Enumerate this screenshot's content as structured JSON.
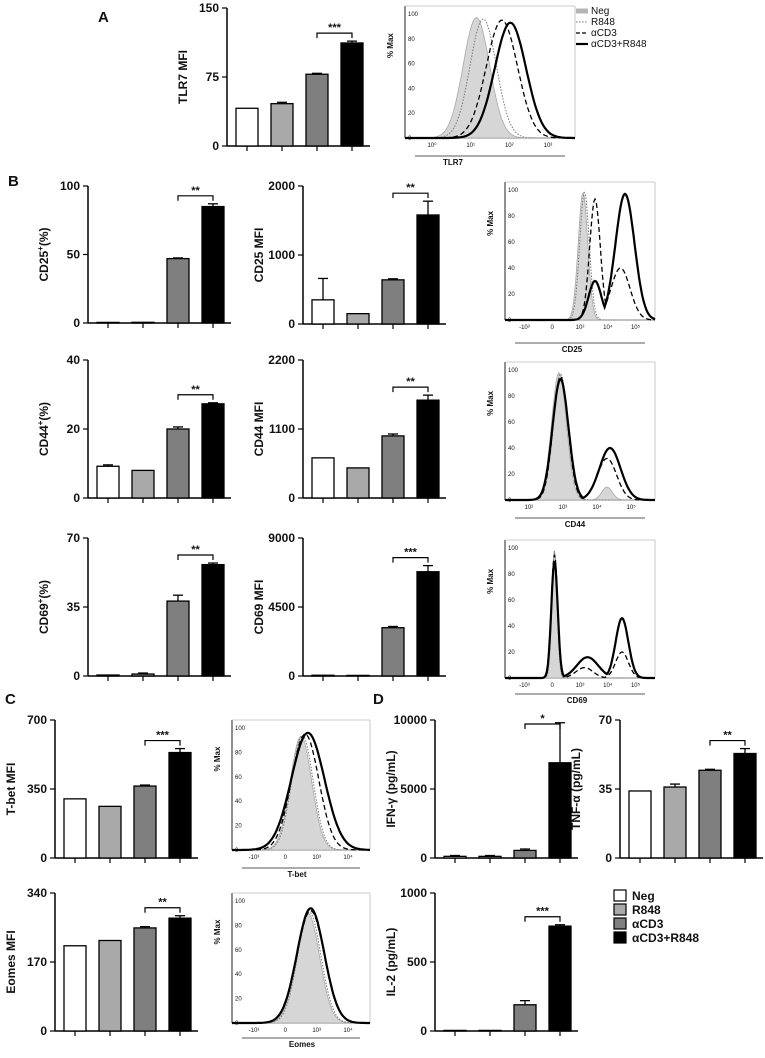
{
  "panel_labels": [
    "A",
    "B",
    "C",
    "D"
  ],
  "groups": [
    "Neg",
    "R848",
    "αCD3",
    "αCD3+R848"
  ],
  "group_fills": [
    "#ffffff",
    "#a9a9a9",
    "#7f7f7f",
    "#000000"
  ],
  "chart_data": [
    {
      "type": "bar",
      "id": "tlr7",
      "ylabel": "TLR7 MFI",
      "ylabel_sup": "",
      "ylabel_tail": "",
      "ylim": [
        0,
        150
      ],
      "yticks": [
        0,
        75,
        150
      ],
      "yticklabels": [
        "0",
        "75",
        "150"
      ],
      "categories": [
        "Neg",
        "R848",
        "αCD3",
        "αCD3+R848"
      ],
      "values": [
        41,
        46,
        78,
        112
      ],
      "errors": [
        0,
        1.5,
        1,
        2
      ],
      "sig": {
        "from": 2,
        "to": 3,
        "label": "***"
      }
    },
    {
      "type": "bar",
      "id": "cd25pct",
      "ylabel": "CD25",
      "ylabel_sup": "+",
      "ylabel_tail": "(%)",
      "ylim": [
        0,
        100
      ],
      "yticks": [
        0,
        50,
        100
      ],
      "yticklabels": [
        "0",
        "50",
        "100"
      ],
      "categories": [
        "Neg",
        "R848",
        "αCD3",
        "αCD3+R848"
      ],
      "values": [
        0.3,
        0.5,
        47,
        85
      ],
      "errors": [
        0,
        0,
        0.5,
        2
      ],
      "sig": {
        "from": 2,
        "to": 3,
        "label": "**"
      }
    },
    {
      "type": "bar",
      "id": "cd25mfi",
      "ylabel": "CD25 MFI",
      "ylabel_sup": "",
      "ylabel_tail": "",
      "ylim": [
        0,
        2000
      ],
      "yticks": [
        0,
        1000,
        2000
      ],
      "yticklabels": [
        "0",
        "1000",
        "2000"
      ],
      "categories": [
        "Neg",
        "R848",
        "αCD3",
        "αCD3+R848"
      ],
      "values": [
        350,
        150,
        640,
        1580
      ],
      "errors": [
        310,
        0,
        15,
        200
      ],
      "sig": {
        "from": 2,
        "to": 3,
        "label": "**"
      }
    },
    {
      "type": "bar",
      "id": "cd44pct",
      "ylabel": "CD44",
      "ylabel_sup": "+",
      "ylabel_tail": "(%)",
      "ylim": [
        0,
        40
      ],
      "yticks": [
        0,
        20,
        40
      ],
      "yticklabels": [
        "0",
        "20",
        "40"
      ],
      "categories": [
        "Neg",
        "R848",
        "αCD3",
        "αCD3+R848"
      ],
      "values": [
        9.2,
        8,
        20,
        27.3
      ],
      "errors": [
        0.4,
        0,
        0.6,
        0.3
      ],
      "sig": {
        "from": 2,
        "to": 3,
        "label": "**"
      }
    },
    {
      "type": "bar",
      "id": "cd44mfi",
      "ylabel": "CD44 MFI",
      "ylabel_sup": "",
      "ylabel_tail": "",
      "ylim": [
        0,
        2200
      ],
      "yticks": [
        0,
        1100,
        2200
      ],
      "yticklabels": [
        "0",
        "1100",
        "2200"
      ],
      "categories": [
        "Neg",
        "R848",
        "αCD3",
        "αCD3+R848"
      ],
      "values": [
        640,
        480,
        990,
        1560
      ],
      "errors": [
        0,
        0,
        30,
        80
      ],
      "sig": {
        "from": 2,
        "to": 3,
        "label": "**"
      }
    },
    {
      "type": "bar",
      "id": "cd69pct",
      "ylabel": "CD69",
      "ylabel_sup": "+",
      "ylabel_tail": "(%)",
      "ylim": [
        0,
        70
      ],
      "yticks": [
        0,
        35,
        70
      ],
      "yticklabels": [
        "0",
        "35",
        "70"
      ],
      "categories": [
        "Neg",
        "R848",
        "αCD3",
        "αCD3+R848"
      ],
      "values": [
        0.5,
        1,
        38,
        56.5
      ],
      "errors": [
        0,
        0.5,
        3,
        0.8
      ],
      "sig": {
        "from": 2,
        "to": 3,
        "label": "**"
      }
    },
    {
      "type": "bar",
      "id": "cd69mfi",
      "ylabel": "CD69 MFI",
      "ylabel_sup": "",
      "ylabel_tail": "",
      "ylim": [
        0,
        9000
      ],
      "yticks": [
        0,
        4500,
        9000
      ],
      "yticklabels": [
        "0",
        "4500",
        "9000"
      ],
      "categories": [
        "Neg",
        "R848",
        "αCD3",
        "αCD3+R848"
      ],
      "values": [
        50,
        20,
        3150,
        6800
      ],
      "errors": [
        0,
        0,
        80,
        400
      ],
      "sig": {
        "from": 2,
        "to": 3,
        "label": "***"
      }
    },
    {
      "type": "bar",
      "id": "tbet",
      "ylabel": "T-bet MFI",
      "ylabel_sup": "",
      "ylabel_tail": "",
      "ylim": [
        0,
        700
      ],
      "yticks": [
        0,
        350,
        700
      ],
      "yticklabels": [
        "0",
        "350",
        "700"
      ],
      "categories": [
        "Neg",
        "R848",
        "αCD3",
        "αCD3+R848"
      ],
      "values": [
        300,
        262,
        365,
        535
      ],
      "errors": [
        0,
        0,
        5,
        20
      ],
      "sig": {
        "from": 2,
        "to": 3,
        "label": "***"
      }
    },
    {
      "type": "bar",
      "id": "eomes",
      "ylabel": "Eomes MFI",
      "ylabel_sup": "",
      "ylabel_tail": "",
      "ylim": [
        0,
        340
      ],
      "yticks": [
        0,
        170,
        340
      ],
      "yticklabels": [
        "0",
        "170",
        "340"
      ],
      "categories": [
        "Neg",
        "R848",
        "αCD3",
        "αCD3+R848"
      ],
      "values": [
        210,
        223,
        254,
        278
      ],
      "errors": [
        0,
        0,
        3,
        6
      ],
      "sig": {
        "from": 2,
        "to": 3,
        "label": "**"
      }
    },
    {
      "type": "bar",
      "id": "ifng",
      "ylabel": "IFN-γ (pg/mL)",
      "ylabel_sup": "",
      "ylabel_tail": "",
      "ylim": [
        0,
        10000
      ],
      "yticks": [
        0,
        5000,
        10000
      ],
      "yticklabels": [
        "0",
        "5000",
        "10000"
      ],
      "categories": [
        "Neg",
        "R848",
        "αCD3",
        "αCD3+R848"
      ],
      "values": [
        120,
        120,
        550,
        6900
      ],
      "errors": [
        60,
        60,
        100,
        2900
      ],
      "sig": {
        "from": 2,
        "to": 3,
        "label": "*"
      }
    },
    {
      "type": "bar",
      "id": "tnfa",
      "ylabel": "TNF-α (pg/mL)",
      "ylabel_sup": "",
      "ylabel_tail": "",
      "ylim": [
        0,
        70
      ],
      "yticks": [
        0,
        35,
        70
      ],
      "yticklabels": [
        "0",
        "35",
        "70"
      ],
      "categories": [
        "Neg",
        "R848",
        "αCD3",
        "αCD3+R848"
      ],
      "values": [
        34,
        36,
        44.5,
        53
      ],
      "errors": [
        0,
        1.5,
        0.5,
        2.5
      ],
      "sig": {
        "from": 2,
        "to": 3,
        "label": "**"
      }
    },
    {
      "type": "bar",
      "id": "il2",
      "ylabel": "IL-2 (pg/mL)",
      "ylabel_sup": "",
      "ylabel_tail": "",
      "ylim": [
        0,
        1000
      ],
      "yticks": [
        0,
        500,
        1000
      ],
      "yticklabels": [
        "0",
        "500",
        "1000"
      ],
      "categories": [
        "Neg",
        "R848",
        "αCD3",
        "αCD3+R848"
      ],
      "values": [
        3,
        3,
        190,
        760
      ],
      "errors": [
        0,
        0,
        30,
        10
      ],
      "sig": {
        "from": 2,
        "to": 3,
        "label": "***"
      }
    }
  ],
  "histograms": [
    {
      "id": "h-tlr7",
      "xlabel": "TLR7",
      "ylabel": "% Max",
      "yticks": [
        "0",
        "20",
        "40",
        "60",
        "80",
        "100"
      ],
      "xticks": [
        "10⁰",
        "10¹",
        "10²",
        "10³"
      ],
      "neg": [
        {
          "c": 0.42,
          "w": 0.11,
          "h": 0.97
        }
      ],
      "r848": [
        {
          "c": 0.46,
          "w": 0.11,
          "h": 0.96
        }
      ],
      "acd3": [
        {
          "c": 0.57,
          "w": 0.13,
          "h": 0.95
        }
      ],
      "combo": [
        {
          "c": 0.62,
          "w": 0.13,
          "h": 0.93
        }
      ],
      "show_legend": true,
      "legend": [
        "Neg",
        "R848",
        "αCD3",
        "αCD3+R848"
      ]
    },
    {
      "id": "h-cd25",
      "xlabel": "CD25",
      "ylabel": "% Max",
      "yticks": [
        "0",
        "20",
        "40",
        "60",
        "80",
        "100"
      ],
      "xticks": [
        "-10³",
        "0",
        "10³",
        "10⁴",
        "10⁵"
      ],
      "neg": [
        {
          "c": 0.52,
          "w": 0.045,
          "h": 0.98
        }
      ],
      "r848": [
        {
          "c": 0.53,
          "w": 0.045,
          "h": 0.98
        }
      ],
      "acd3": [
        {
          "c": 0.6,
          "w": 0.05,
          "h": 0.93
        },
        {
          "c": 0.77,
          "w": 0.09,
          "h": 0.4
        }
      ],
      "combo": [
        {
          "c": 0.6,
          "w": 0.06,
          "h": 0.3
        },
        {
          "c": 0.8,
          "w": 0.09,
          "h": 0.97
        }
      ],
      "show_legend": false,
      "legend": []
    },
    {
      "id": "h-cd44",
      "xlabel": "CD44",
      "ylabel": "% Max",
      "yticks": [
        "0",
        "20",
        "40",
        "60",
        "80",
        "100"
      ],
      "xticks": [
        "10²",
        "10³",
        "10⁴",
        "10⁵"
      ],
      "neg": [
        {
          "c": 0.36,
          "w": 0.07,
          "h": 0.98
        },
        {
          "c": 0.68,
          "w": 0.05,
          "h": 0.1
        }
      ],
      "r848": [
        {
          "c": 0.37,
          "w": 0.07,
          "h": 0.97
        }
      ],
      "acd3": [
        {
          "c": 0.37,
          "w": 0.07,
          "h": 0.95
        },
        {
          "c": 0.68,
          "w": 0.09,
          "h": 0.32
        }
      ],
      "combo": [
        {
          "c": 0.37,
          "w": 0.075,
          "h": 0.93
        },
        {
          "c": 0.7,
          "w": 0.1,
          "h": 0.4
        }
      ],
      "show_legend": false,
      "legend": []
    },
    {
      "id": "h-cd69",
      "xlabel": "CD69",
      "ylabel": "% Max",
      "yticks": [
        "0",
        "20",
        "40",
        "60",
        "80",
        "100"
      ],
      "xticks": [
        "-10³",
        "0",
        "10³",
        "10⁴",
        "10⁵"
      ],
      "neg": [
        {
          "c": 0.33,
          "w": 0.025,
          "h": 0.98
        }
      ],
      "r848": [
        {
          "c": 0.33,
          "w": 0.025,
          "h": 0.98
        }
      ],
      "acd3": [
        {
          "c": 0.33,
          "w": 0.03,
          "h": 0.95
        },
        {
          "c": 0.53,
          "w": 0.08,
          "h": 0.08
        },
        {
          "c": 0.78,
          "w": 0.06,
          "h": 0.2
        }
      ],
      "combo": [
        {
          "c": 0.33,
          "w": 0.03,
          "h": 0.9
        },
        {
          "c": 0.55,
          "w": 0.1,
          "h": 0.16
        },
        {
          "c": 0.78,
          "w": 0.06,
          "h": 0.46
        }
      ],
      "show_legend": false,
      "legend": []
    },
    {
      "id": "h-tbet",
      "xlabel": "T-bet",
      "ylabel": "% Max",
      "yticks": [
        "0",
        "20",
        "40",
        "60",
        "80",
        "100"
      ],
      "xticks": [
        "-10³",
        "0",
        "10³",
        "10⁴"
      ],
      "neg": [
        {
          "c": 0.5,
          "w": 0.11,
          "h": 0.93
        }
      ],
      "r848": [
        {
          "c": 0.51,
          "w": 0.11,
          "h": 0.94
        }
      ],
      "acd3": [
        {
          "c": 0.53,
          "w": 0.14,
          "h": 0.95
        }
      ],
      "combo": [
        {
          "c": 0.55,
          "w": 0.17,
          "h": 0.96
        }
      ],
      "show_legend": false,
      "legend": []
    },
    {
      "id": "h-eomes",
      "xlabel": "Eomes",
      "ylabel": "% Max",
      "yticks": [
        "0",
        "20",
        "40",
        "60",
        "80",
        "100"
      ],
      "xticks": [
        "-10³",
        "0",
        "10³",
        "10⁴"
      ],
      "neg": [
        {
          "c": 0.55,
          "w": 0.12,
          "h": 0.9
        }
      ],
      "r848": [
        {
          "c": 0.56,
          "w": 0.12,
          "h": 0.91
        }
      ],
      "acd3": [
        {
          "c": 0.57,
          "w": 0.14,
          "h": 0.92
        }
      ],
      "combo": [
        {
          "c": 0.57,
          "w": 0.14,
          "h": 0.94
        }
      ],
      "show_legend": false,
      "legend": []
    }
  ],
  "legend": {
    "items": [
      "Neg",
      "R848",
      "αCD3",
      "αCD3+R848"
    ]
  }
}
